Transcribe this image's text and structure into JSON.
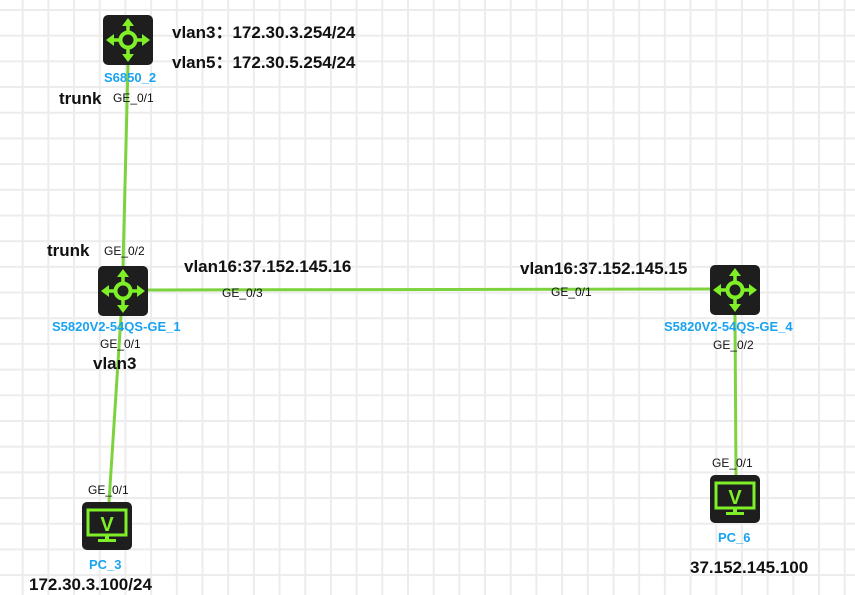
{
  "colors": {
    "link": "#7dd33e",
    "device_bg": "#1e1e1e",
    "icon": "#7ff028",
    "label": "#1aa3f0"
  },
  "devices": [
    {
      "name": "S6850_2",
      "type": "switch",
      "icon": "switch-arrows-icon"
    },
    {
      "name": "S5820V2-54QS-GE_1",
      "type": "switch",
      "icon": "switch-arrows-icon"
    },
    {
      "name": "S5820V2-54QS-GE_4",
      "type": "switch",
      "icon": "switch-arrows-icon"
    },
    {
      "name": "PC_3",
      "type": "pc",
      "icon": "monitor-icon"
    },
    {
      "name": "PC_6",
      "type": "pc",
      "icon": "monitor-icon"
    }
  ],
  "annotations": {
    "s6850_vlan3": "vlan3：172.30.3.254/24",
    "s6850_vlan5": "vlan5：172.30.5.254/24",
    "trunk_top": "trunk",
    "trunk_sw1": "trunk",
    "sw1_vlan3": "vlan3",
    "sw1_vlan16": "vlan16:37.152.145.16",
    "sw4_vlan16": "vlan16:37.152.145.15",
    "pc3_ip": "172.30.3.100/24",
    "pc6_ip": "37.152.145.100"
  },
  "ports": {
    "s6850_ge01": "GE_0/1",
    "sw1_ge02": "GE_0/2",
    "sw1_ge03": "GE_0/3",
    "sw1_ge01": "GE_0/1",
    "sw4_ge01": "GE_0/1",
    "sw4_ge02": "GE_0/2",
    "pc3_ge01": "GE_0/1",
    "pc6_ge01": "GE_0/1"
  }
}
